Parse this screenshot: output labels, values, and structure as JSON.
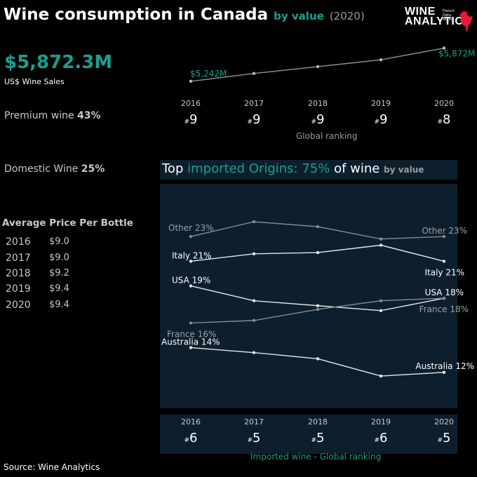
{
  "header": {
    "title": "Wine consumption in Canada",
    "by_value": "by value",
    "year": "(2020)",
    "logo_line1": "WINE",
    "logo_line2": "ANALYTICS",
    "logo_small1": "French",
    "logo_small2": "Data",
    "logo_small3": "Team"
  },
  "summary": {
    "total_value": "$5,872.3M",
    "total_label": "US$ Wine Sales",
    "premium_label": "Premium wine",
    "premium_pct": "43%",
    "domestic_label": "Domestic Wine",
    "domestic_pct": "25%"
  },
  "avg_price": {
    "title": "Average Price Per Bottle",
    "rows": [
      {
        "year": "2016",
        "price": "$9.0"
      },
      {
        "year": "2017",
        "price": "$9.0"
      },
      {
        "year": "2018",
        "price": "$9.2"
      },
      {
        "year": "2019",
        "price": "$9.4"
      },
      {
        "year": "2020",
        "price": "$9.4"
      }
    ]
  },
  "global": {
    "years": [
      "2016",
      "2017",
      "2018",
      "2019",
      "2020"
    ],
    "ranks": [
      "9",
      "9",
      "9",
      "9",
      "8"
    ],
    "caption": "Global ranking"
  },
  "imports_panel": {
    "title_a": "Top ",
    "title_hl": "imported Origins: 75%",
    "title_b": " of wine ",
    "title_sm": "by value"
  },
  "imported_ranking": {
    "years": [
      "2016",
      "2017",
      "2018",
      "2019",
      "2020"
    ],
    "ranks": [
      "6",
      "5",
      "5",
      "6",
      "5"
    ],
    "caption": "Imported wine - Global ranking"
  },
  "source": "Source: Wine Analytics",
  "colors": {
    "accent": "#1a9e8f",
    "panel": "#0d1f2d",
    "line_white": "#e6e6e6",
    "line_grey": "#8a8a8a",
    "logo_red": "#e8173c"
  },
  "chart_data": [
    {
      "type": "line",
      "x": [
        "2016",
        "2017",
        "2018",
        "2019",
        "2020"
      ],
      "series": [
        {
          "values": [
            5242,
            5390,
            5520,
            5650,
            5872
          ]
        }
      ],
      "annotations": [
        "$5,242M",
        "$5,872M"
      ],
      "ylim": [
        5000,
        6000
      ]
    },
    {
      "type": "line",
      "x": [
        "2016",
        "2017",
        "2018",
        "2019",
        "2020"
      ],
      "ylim": [
        10,
        26
      ],
      "series": [
        {
          "name": "Other",
          "values": [
            23,
            24.2,
            23.8,
            22.8,
            23
          ],
          "start_label": "Other 23%",
          "end_label": "Other 23%"
        },
        {
          "name": "Italy",
          "values": [
            21,
            21.6,
            21.7,
            22.3,
            21
          ],
          "start_label": "Italy 21%",
          "end_label": "Italy 21%"
        },
        {
          "name": "USA",
          "values": [
            19,
            17.8,
            17.4,
            17,
            18
          ],
          "start_label": "USA 19%",
          "end_label": "USA 18%"
        },
        {
          "name": "France",
          "values": [
            16,
            16.2,
            17.1,
            17.8,
            18
          ],
          "start_label": "France 16%",
          "end_label": "France 18%"
        },
        {
          "name": "Australia",
          "values": [
            14,
            13.6,
            13.1,
            11.7,
            12
          ],
          "start_label": "Australia 14%",
          "end_label": "Australia 12%"
        }
      ]
    }
  ]
}
